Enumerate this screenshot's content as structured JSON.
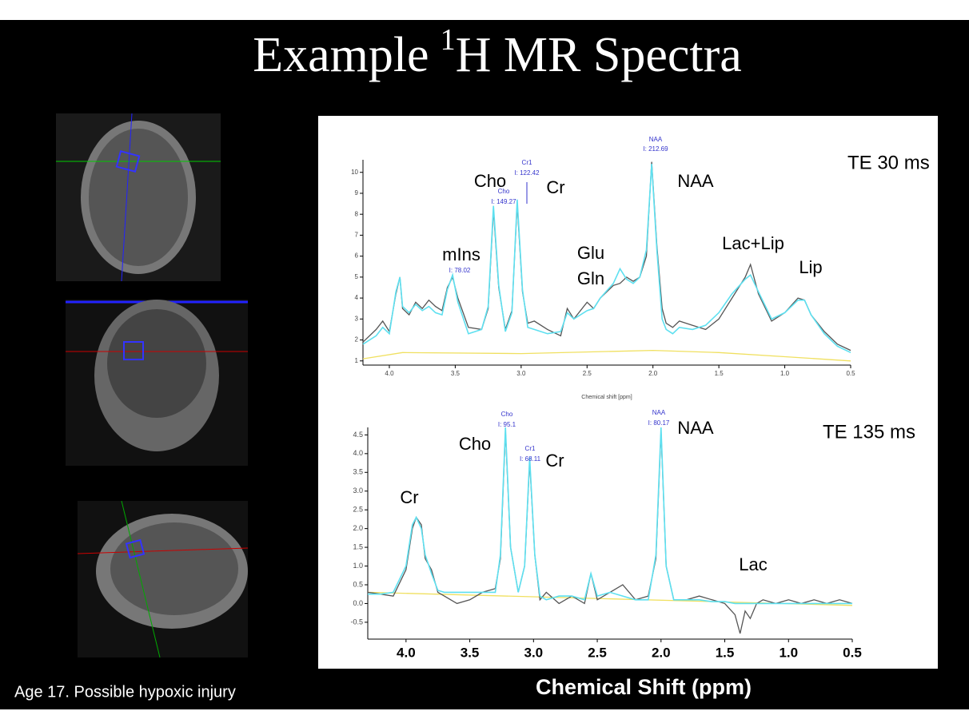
{
  "title": {
    "prefix": "Example",
    "superscript": "1",
    "rest": "H MR Spectra"
  },
  "caption": "Age 17. Possible hypoxic injury",
  "x_axis_label": "Chemical Shift (ppm)",
  "chart_data": [
    {
      "type": "line",
      "xlabel": "Chemical shift [ppm]",
      "xlim": [
        4.2,
        0.5
      ],
      "ylim": [
        0.8,
        10.6
      ],
      "xticks": [
        {
          "value": 4,
          "label": "4.0"
        },
        3.5,
        {
          "value": 3,
          "label": "3.0"
        },
        2.5,
        {
          "value": 2,
          "label": "2.0"
        },
        1.5,
        {
          "value": 1,
          "label": "1.0"
        },
        0.5
      ],
      "yticks": [
        1,
        2,
        3,
        4,
        5,
        6,
        7,
        8,
        9,
        10
      ],
      "annotations": [
        "TE 30 ms",
        "Cho",
        "Cr",
        "mIns",
        "Glu",
        "Gln",
        "NAA",
        "Lac+Lip",
        "Lip"
      ],
      "peak_labels": [
        "Cho",
        "I: 149.27",
        "Cr1",
        "I: 122.42",
        "NAA",
        "I: 212.69",
        "I: 78.02"
      ],
      "x": [
        4.2,
        4.1,
        4.05,
        4.0,
        3.95,
        3.92,
        3.9,
        3.85,
        3.8,
        3.75,
        3.7,
        3.65,
        3.6,
        3.56,
        3.52,
        3.48,
        3.4,
        3.3,
        3.25,
        3.21,
        3.17,
        3.12,
        3.07,
        3.03,
        2.99,
        2.95,
        2.9,
        2.8,
        2.7,
        2.65,
        2.6,
        2.5,
        2.45,
        2.4,
        2.3,
        2.25,
        2.2,
        2.15,
        2.1,
        2.05,
        2.01,
        1.97,
        1.93,
        1.9,
        1.85,
        1.8,
        1.7,
        1.6,
        1.5,
        1.4,
        1.3,
        1.26,
        1.2,
        1.1,
        1.0,
        0.9,
        0.85,
        0.8,
        0.7,
        0.6,
        0.5
      ],
      "series": [
        {
          "color": "#555555",
          "values": [
            1.9,
            2.5,
            2.9,
            2.4,
            4.2,
            5.0,
            3.5,
            3.2,
            3.8,
            3.5,
            3.9,
            3.6,
            3.4,
            4.5,
            5.0,
            4.0,
            2.6,
            2.5,
            3.5,
            8.2,
            4.5,
            2.5,
            3.4,
            8.5,
            4.3,
            2.8,
            2.9,
            2.5,
            2.2,
            3.5,
            3.0,
            3.8,
            3.5,
            4.0,
            4.6,
            4.7,
            5.0,
            4.8,
            5.0,
            6.0,
            10.5,
            6.5,
            3.5,
            2.8,
            2.6,
            2.9,
            2.7,
            2.5,
            3.0,
            4.0,
            5.0,
            5.6,
            4.2,
            2.9,
            3.3,
            4.0,
            3.9,
            3.2,
            2.4,
            1.8,
            1.5
          ]
        },
        {
          "color": "#5ee0f0",
          "values": [
            1.8,
            2.2,
            2.6,
            2.3,
            4.3,
            5.0,
            3.6,
            3.3,
            3.7,
            3.4,
            3.6,
            3.3,
            3.2,
            4.4,
            5.1,
            3.8,
            2.3,
            2.5,
            3.6,
            8.4,
            4.6,
            2.4,
            3.3,
            8.7,
            4.4,
            2.6,
            2.5,
            2.3,
            2.4,
            3.3,
            3.0,
            3.4,
            3.5,
            4.0,
            4.7,
            5.4,
            4.9,
            4.7,
            5.0,
            6.3,
            10.4,
            6.3,
            3.0,
            2.5,
            2.3,
            2.6,
            2.5,
            2.7,
            3.3,
            4.2,
            4.9,
            5.1,
            4.3,
            3.0,
            3.3,
            3.9,
            3.9,
            3.2,
            2.3,
            1.7,
            1.4
          ]
        },
        {
          "color": "#f0e060",
          "x": [
            4.2,
            3.9,
            3.0,
            2.0,
            1.5,
            1.0,
            0.5
          ],
          "values": [
            1.1,
            1.4,
            1.35,
            1.5,
            1.4,
            1.2,
            1.0
          ]
        }
      ]
    },
    {
      "type": "line",
      "xlim": [
        4.3,
        0.5
      ],
      "ylim": [
        -0.95,
        4.7
      ],
      "xticks": [
        {
          "value": 4,
          "label": "4.0"
        },
        3.5,
        {
          "value": 3,
          "label": "3.0"
        },
        2.5,
        {
          "value": 2,
          "label": "2.0"
        },
        1.5,
        {
          "value": 1,
          "label": "1.0"
        },
        0.5
      ],
      "yticks": [
        -0.5,
        {
          "value": 0,
          "label": "0.0"
        },
        0.5,
        {
          "value": 1,
          "label": "1.0"
        },
        1.5,
        {
          "value": 2,
          "label": "2.0"
        },
        2.5,
        {
          "value": 3,
          "label": "3.0"
        },
        3.5,
        {
          "value": 4,
          "label": "4.0"
        },
        4.5
      ],
      "annotations": [
        "TE 135 ms",
        "Cho",
        "Cr",
        "NAA",
        "Cr",
        "Lac"
      ],
      "peak_labels": [
        "Cho",
        "I: 95.1",
        "Cr1",
        "I: 68.11",
        "NAA",
        "I: 80.17"
      ],
      "x": [
        4.3,
        4.2,
        4.1,
        4.0,
        3.95,
        3.92,
        3.88,
        3.85,
        3.8,
        3.75,
        3.7,
        3.6,
        3.5,
        3.4,
        3.3,
        3.26,
        3.22,
        3.18,
        3.12,
        3.07,
        3.03,
        2.99,
        2.95,
        2.9,
        2.8,
        2.7,
        2.6,
        2.55,
        2.5,
        2.4,
        2.3,
        2.2,
        2.1,
        2.04,
        2.0,
        1.96,
        1.9,
        1.8,
        1.7,
        1.6,
        1.5,
        1.42,
        1.38,
        1.34,
        1.3,
        1.25,
        1.2,
        1.1,
        1.0,
        0.9,
        0.8,
        0.7,
        0.6,
        0.5
      ],
      "series": [
        {
          "color": "#555555",
          "values": [
            0.3,
            0.25,
            0.2,
            0.9,
            2.0,
            2.3,
            2.1,
            1.2,
            0.9,
            0.3,
            0.2,
            0.0,
            0.1,
            0.3,
            0.4,
            1.2,
            4.6,
            1.5,
            0.3,
            1.0,
            3.8,
            1.3,
            0.1,
            0.3,
            0.0,
            0.2,
            0.0,
            0.8,
            0.1,
            0.3,
            0.5,
            0.1,
            0.2,
            1.2,
            4.6,
            1.0,
            0.1,
            0.1,
            0.2,
            0.1,
            0.0,
            -0.3,
            -0.8,
            -0.2,
            -0.4,
            0.0,
            0.1,
            0.0,
            0.1,
            0.0,
            0.1,
            0.0,
            0.1,
            0.0
          ]
        },
        {
          "color": "#5ee0f0",
          "values": [
            0.25,
            0.25,
            0.3,
            1.0,
            2.1,
            2.3,
            2.0,
            1.3,
            0.8,
            0.35,
            0.3,
            0.3,
            0.3,
            0.3,
            0.3,
            1.3,
            4.7,
            1.5,
            0.3,
            1.0,
            3.9,
            1.3,
            0.2,
            0.1,
            0.2,
            0.2,
            0.1,
            0.8,
            0.2,
            0.3,
            0.2,
            0.1,
            0.1,
            1.3,
            4.7,
            1.0,
            0.1,
            0.1,
            0.1,
            0.05,
            0.05,
            0.0,
            0.0,
            0.0,
            0.0,
            0.0,
            0.0,
            0.0,
            0.0,
            0.0,
            0.0,
            0.0,
            0.0,
            0.0
          ]
        },
        {
          "color": "#f0e060",
          "x": [
            4.3,
            0.5
          ],
          "values": [
            0.3,
            -0.05
          ]
        }
      ]
    }
  ]
}
